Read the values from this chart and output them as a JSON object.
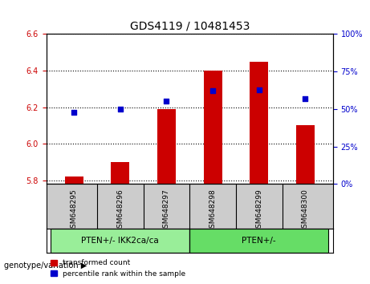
{
  "title": "GDS4119 / 10481453",
  "samples": [
    "GSM648295",
    "GSM648296",
    "GSM648297",
    "GSM648298",
    "GSM648299",
    "GSM648300"
  ],
  "transformed_counts": [
    5.82,
    5.9,
    6.19,
    6.4,
    6.45,
    6.1
  ],
  "percentile_ranks": [
    48,
    50,
    55,
    62,
    63,
    57
  ],
  "ylim_left": [
    5.78,
    6.6
  ],
  "ylim_right": [
    0,
    100
  ],
  "yticks_left": [
    5.8,
    6.0,
    6.2,
    6.4,
    6.6
  ],
  "yticks_right": [
    0,
    25,
    50,
    75,
    100
  ],
  "bar_color": "#cc0000",
  "dot_color": "#0000cc",
  "bar_width": 0.4,
  "groups": [
    {
      "label": "PTEN+/- IKK2ca/ca",
      "indices": [
        0,
        1,
        2
      ],
      "color": "#99ee99"
    },
    {
      "label": "PTEN+/-",
      "indices": [
        3,
        4,
        5
      ],
      "color": "#66dd66"
    }
  ],
  "group_label_prefix": "genotype/variation",
  "legend_transformed": "transformed count",
  "legend_percentile": "percentile rank within the sample",
  "tick_label_area_color": "#cccccc",
  "group_area_color": "#99ee99",
  "background_plot": "#ffffff",
  "grid_color": "#000000",
  "left_tick_color": "#cc0000",
  "right_tick_color": "#0000cc",
  "title_color": "#000000"
}
